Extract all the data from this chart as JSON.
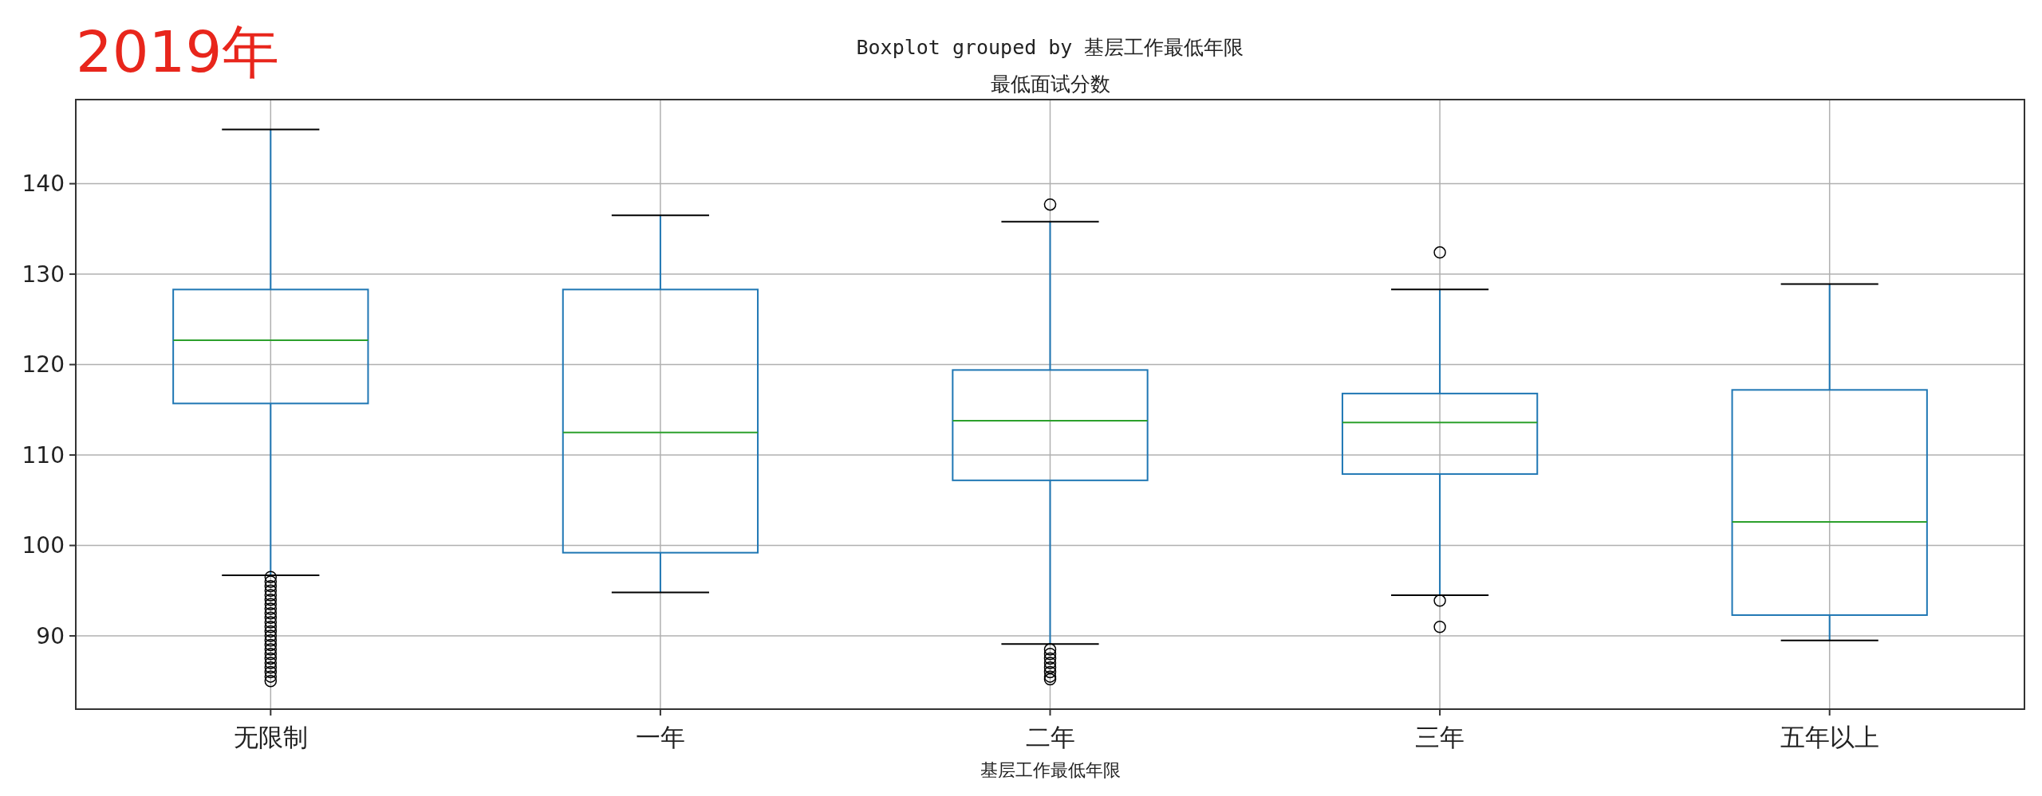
{
  "chart_data": {
    "type": "box",
    "title": "Boxplot grouped by 基层工作最低年限",
    "subtitle": "最低面试分数",
    "xlabel": "基层工作最低年限",
    "annotations": [
      "2019年"
    ],
    "categories": [
      "无限制",
      "一年",
      "二年",
      "三年",
      "五年以上"
    ],
    "color": "#1f77b4",
    "boxes": [
      {
        "low": 96.7,
        "q1": 115.7,
        "median": 122.7,
        "q3": 128.3,
        "high": 146.0,
        "outliers": [
          96.5,
          96.0,
          95.5,
          95.0,
          94.5,
          94.0,
          93.5,
          93.0,
          92.5,
          92.0,
          91.5,
          91.0,
          90.5,
          90.0,
          89.5,
          89.0,
          88.5,
          88.0,
          87.5,
          87.0,
          86.5,
          86.0,
          85.5,
          85.0
        ]
      },
      {
        "low": 94.8,
        "q1": 99.2,
        "median": 112.5,
        "q3": 128.3,
        "high": 136.5
      },
      {
        "low": 89.1,
        "q1": 107.2,
        "median": 113.8,
        "q3": 119.4,
        "high": 135.8,
        "outliers": [
          137.7,
          88.5,
          88.0,
          87.5,
          87.0,
          86.5,
          86.0,
          85.5,
          85.2
        ]
      },
      {
        "low": 94.5,
        "q1": 107.9,
        "median": 113.6,
        "q3": 116.8,
        "high": 128.3,
        "outliers": [
          132.4,
          93.9,
          91.0
        ]
      },
      {
        "low": 89.5,
        "q1": 92.3,
        "median": 102.6,
        "q3": 117.2,
        "high": 128.9
      }
    ],
    "ylim": [
      81.9,
      149.3
    ],
    "yticks": [
      90,
      100,
      110,
      120,
      130,
      140
    ],
    "grid": true
  }
}
